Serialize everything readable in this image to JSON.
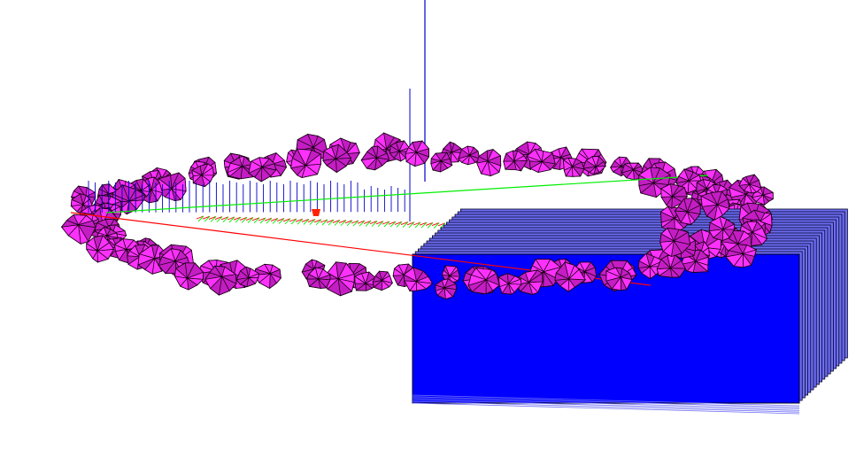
{
  "scene": {
    "background": "#ffffff",
    "blob_fill": "#c41ec4",
    "blob_highlight": "#ff33ff",
    "blob_edge": "#1a0014",
    "box_front": "#0000ff",
    "box_edge_light": "#6e6ef5",
    "box_outline": "#000022",
    "axis_x_color": "#ff0000",
    "axis_y_color": "#00ee00",
    "axis_z_color": "#0000cc"
  }
}
